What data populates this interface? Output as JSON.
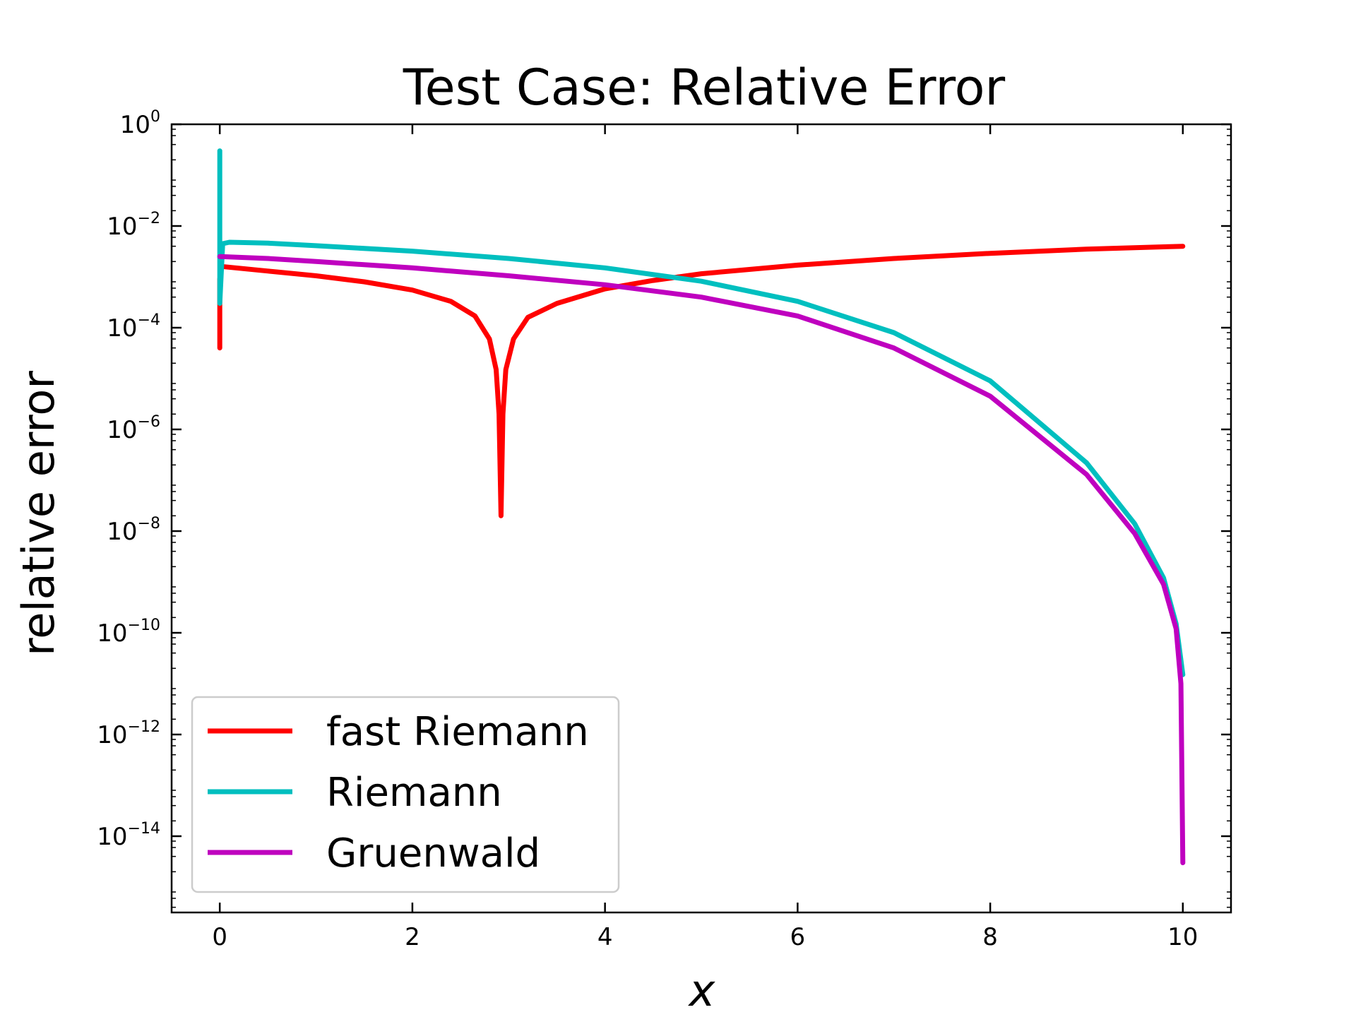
{
  "chart_data": {
    "type": "line",
    "title": "Test Case: Relative Error",
    "xlabel": "x",
    "ylabel": "relative error",
    "xlim": [
      -0.5,
      10.5
    ],
    "ylim_log10": [
      -15.5,
      0
    ],
    "yscale": "log",
    "x_ticks": [
      0,
      2,
      4,
      6,
      8,
      10
    ],
    "x_tick_labels": [
      "0",
      "2",
      "4",
      "6",
      "8",
      "10"
    ],
    "y_ticks_log10": [
      0,
      -2,
      -4,
      -6,
      -8,
      -10,
      -12,
      -14
    ],
    "y_tick_base": "10",
    "y_tick_exponents": [
      "0",
      "−2",
      "−4",
      "−6",
      "−8",
      "−10",
      "−12",
      "−14"
    ],
    "legend": {
      "location": "lower-left"
    },
    "grid": false,
    "series": [
      {
        "name": "fast Riemann",
        "color": "#ff0000",
        "points": [
          [
            0.0,
            4e-05
          ],
          [
            0.0,
            0.0009
          ],
          [
            0.02,
            0.0016
          ],
          [
            0.5,
            0.0013
          ],
          [
            1.0,
            0.00105
          ],
          [
            1.5,
            0.0008
          ],
          [
            2.0,
            0.00055
          ],
          [
            2.4,
            0.00033
          ],
          [
            2.65,
            0.00017
          ],
          [
            2.8,
            6e-05
          ],
          [
            2.87,
            1.5e-05
          ],
          [
            2.9,
            2e-06
          ],
          [
            2.92,
            2e-08
          ],
          [
            2.94,
            2e-06
          ],
          [
            2.97,
            1.5e-05
          ],
          [
            3.05,
            6e-05
          ],
          [
            3.2,
            0.00016
          ],
          [
            3.5,
            0.0003
          ],
          [
            4.0,
            0.00058
          ],
          [
            4.5,
            0.00085
          ],
          [
            5.0,
            0.00115
          ],
          [
            6.0,
            0.0017
          ],
          [
            7.0,
            0.0023
          ],
          [
            8.0,
            0.0029
          ],
          [
            9.0,
            0.0035
          ],
          [
            10.0,
            0.004
          ]
        ]
      },
      {
        "name": "Riemann",
        "color": "#00bfbf",
        "points": [
          [
            0.0,
            0.3
          ],
          [
            0.0,
            0.0003
          ],
          [
            0.03,
            0.0045
          ],
          [
            0.1,
            0.0048
          ],
          [
            0.5,
            0.0046
          ],
          [
            1.0,
            0.0041
          ],
          [
            2.0,
            0.0032
          ],
          [
            3.0,
            0.0023
          ],
          [
            4.0,
            0.0015
          ],
          [
            5.0,
            0.00082
          ],
          [
            6.0,
            0.00033
          ],
          [
            7.0,
            8e-05
          ],
          [
            8.0,
            9e-06
          ],
          [
            9.0,
            2.2e-07
          ],
          [
            9.5,
            1.4e-08
          ],
          [
            9.8,
            1.2e-09
          ],
          [
            9.93,
            1.5e-10
          ],
          [
            10.0,
            1.5e-11
          ]
        ]
      },
      {
        "name": "Gruenwald",
        "color": "#bf00bf",
        "points": [
          [
            0.0,
            0.0025
          ],
          [
            0.5,
            0.0023
          ],
          [
            1.0,
            0.002
          ],
          [
            2.0,
            0.0015
          ],
          [
            3.0,
            0.00105
          ],
          [
            4.0,
            0.0007
          ],
          [
            5.0,
            0.0004
          ],
          [
            6.0,
            0.00017
          ],
          [
            7.0,
            4e-05
          ],
          [
            8.0,
            4.5e-06
          ],
          [
            9.0,
            1.3e-07
          ],
          [
            9.5,
            9e-09
          ],
          [
            9.8,
            9e-10
          ],
          [
            9.93,
            1.2e-10
          ],
          [
            9.98,
            1e-11
          ],
          [
            10.0,
            3e-15
          ]
        ]
      }
    ]
  }
}
